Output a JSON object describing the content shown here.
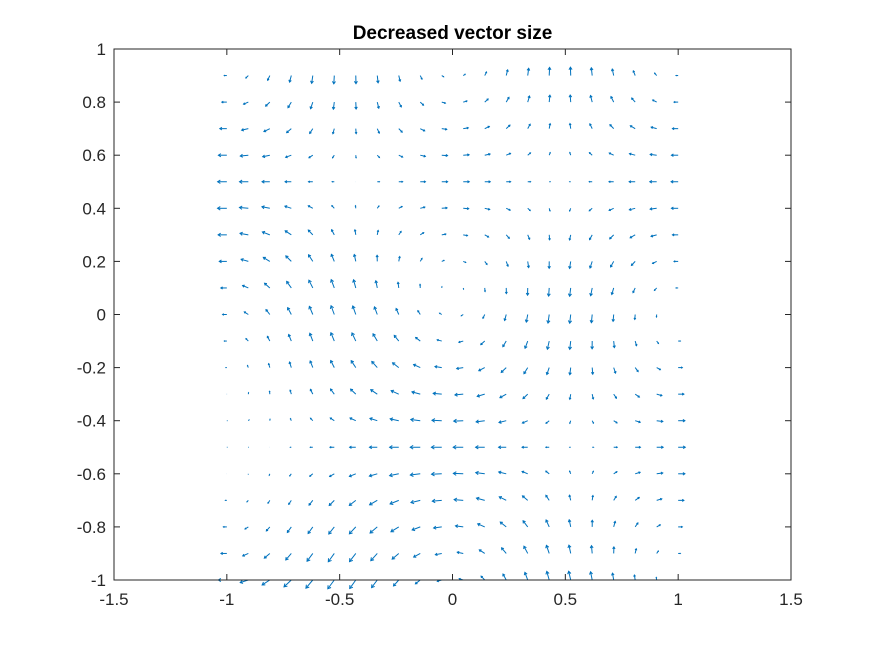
{
  "chart_data": {
    "type": "quiver",
    "title": "Decreased vector size",
    "xlabel": "",
    "ylabel": "",
    "xlim": [
      -1.5,
      1.5
    ],
    "ylim": [
      -1,
      1
    ],
    "xticks": [
      -1.5,
      -1,
      -0.5,
      0,
      0.5,
      1,
      1.5
    ],
    "yticks": [
      -1,
      -0.8,
      -0.6,
      -0.4,
      -0.2,
      0,
      0.2,
      0.4,
      0.6,
      0.8,
      1
    ],
    "xtick_labels": [
      "-1.5",
      "-1",
      "-0.5",
      "0",
      "0.5",
      "1",
      "1.5"
    ],
    "ytick_labels": [
      "-1",
      "-0.8",
      "-0.6",
      "-0.4",
      "-0.2",
      "0",
      "0.2",
      "0.4",
      "0.6",
      "0.8",
      "1"
    ],
    "grid": false,
    "box": true,
    "series": [
      {
        "color": "#0072bd",
        "x_range": [
          -1,
          1
        ],
        "y_range": [
          -1,
          0.9
        ],
        "x_count": 22,
        "y_count": 20,
        "field": "u = 0.5*cos(pi*x)*sin(pi*y) - 0.6*(1-x)/2*(1-y)/2 ; v = -0.5*sin(pi*x)*cos(pi*y)",
        "arrow_scale": 0.3
      }
    ]
  }
}
